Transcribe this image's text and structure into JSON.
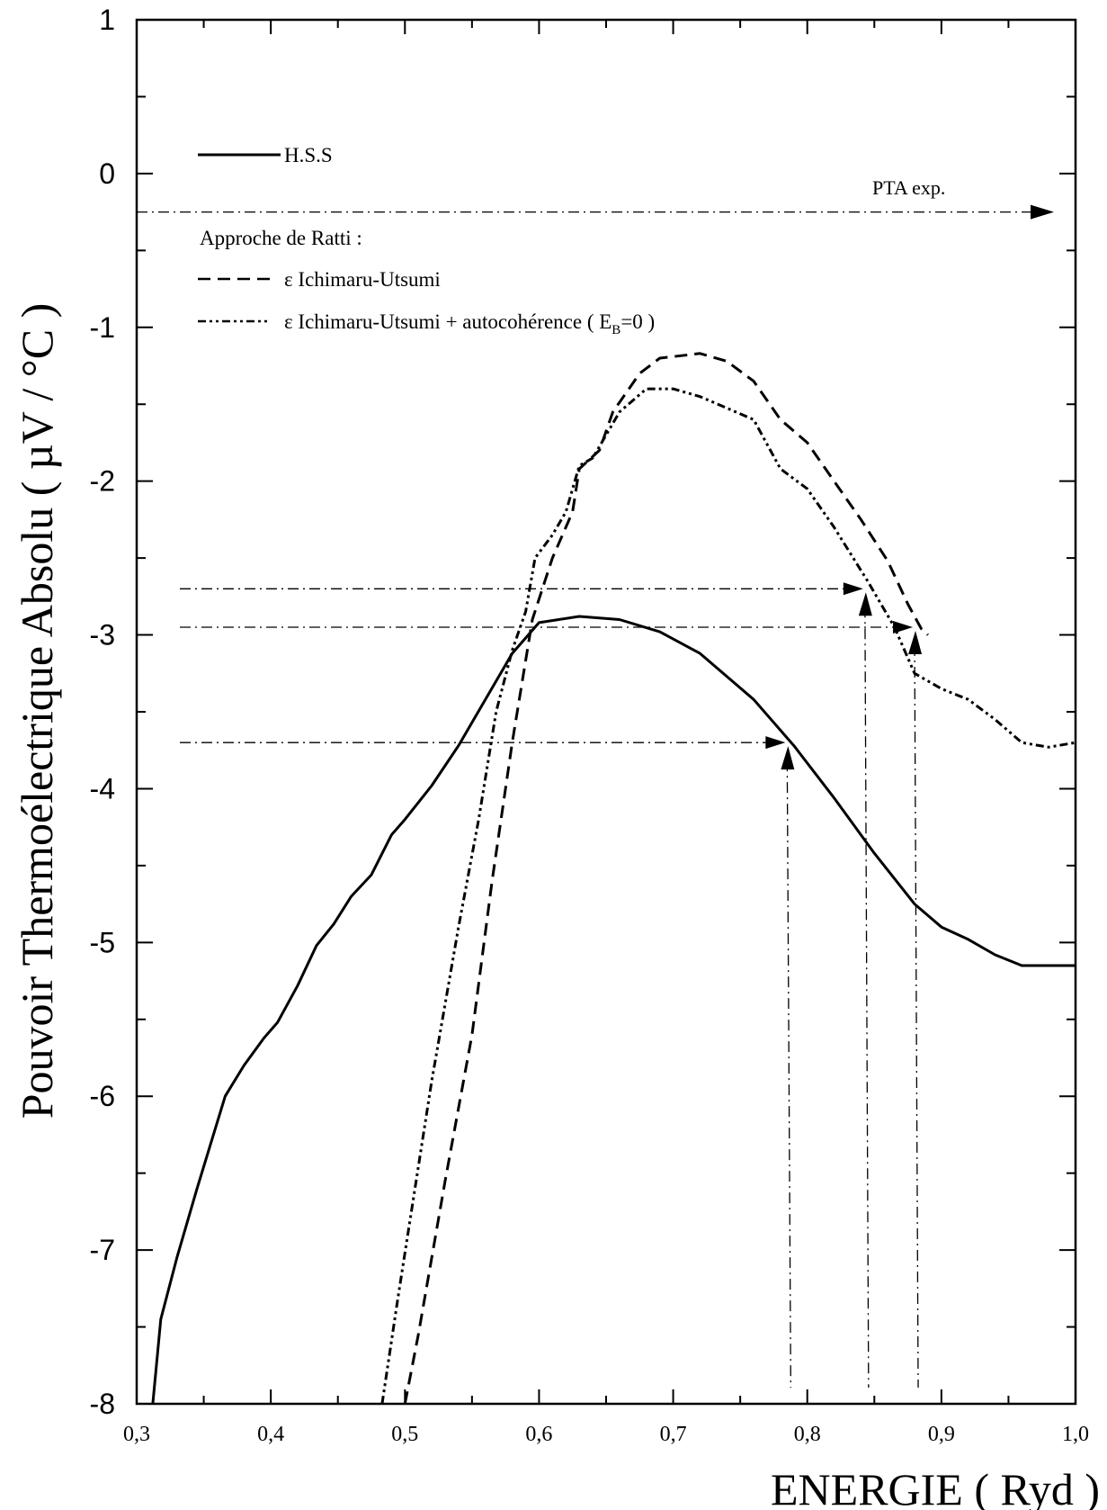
{
  "chart_data": {
    "type": "line",
    "xlabel": "ENERGIE ( Ryd )",
    "ylabel": "Pouvoir Thermoélectrique Absolu ( µV / °C )",
    "xlim": [
      0.3,
      1.0
    ],
    "ylim": [
      -8,
      1
    ],
    "x_ticks": [
      0.3,
      0.4,
      0.5,
      0.6,
      0.7,
      0.8,
      0.9,
      1.0
    ],
    "x_tick_labels": [
      "0,3",
      "0,4",
      "0,5",
      "0,6",
      "0,7",
      "0,8",
      "0,9",
      "1,0"
    ],
    "y_ticks": [
      1,
      0,
      -1,
      -2,
      -3,
      -4,
      -5,
      -6,
      -7,
      -8
    ],
    "y_tick_labels": [
      "1",
      "0",
      "-1",
      "-2",
      "-3",
      "-4",
      "-5",
      "-6",
      "-7",
      "-8"
    ],
    "grid": false,
    "legend_position": "top-left",
    "legend": {
      "hss_label": "H.S.S",
      "group_title": "Approche de Ratti :",
      "iu_label": "ε Ichimaru-Utsumi",
      "iu_auto_label_prefix": "ε Ichimaru-Utsumi + autocohérence ( E",
      "iu_auto_label_subscript": "B",
      "iu_auto_label_suffix": "=0 )"
    },
    "annotation": {
      "pta_label": "PTA exp.",
      "pta_value": -0.25
    },
    "series": [
      {
        "name": "H.S.S",
        "style": "solid",
        "points": [
          [
            0.312,
            -8.0
          ],
          [
            0.318,
            -7.45
          ],
          [
            0.33,
            -7.05
          ],
          [
            0.345,
            -6.6
          ],
          [
            0.366,
            -6.0
          ],
          [
            0.38,
            -5.8
          ],
          [
            0.395,
            -5.62
          ],
          [
            0.405,
            -5.52
          ],
          [
            0.42,
            -5.28
          ],
          [
            0.434,
            -5.02
          ],
          [
            0.447,
            -4.88
          ],
          [
            0.46,
            -4.7
          ],
          [
            0.475,
            -4.56
          ],
          [
            0.49,
            -4.3
          ],
          [
            0.5,
            -4.2
          ],
          [
            0.52,
            -3.98
          ],
          [
            0.54,
            -3.72
          ],
          [
            0.56,
            -3.42
          ],
          [
            0.58,
            -3.12
          ],
          [
            0.6,
            -2.92
          ],
          [
            0.63,
            -2.88
          ],
          [
            0.66,
            -2.9
          ],
          [
            0.69,
            -2.98
          ],
          [
            0.72,
            -3.12
          ],
          [
            0.76,
            -3.42
          ],
          [
            0.79,
            -3.72
          ],
          [
            0.82,
            -4.06
          ],
          [
            0.85,
            -4.42
          ],
          [
            0.88,
            -4.75
          ],
          [
            0.9,
            -4.9
          ],
          [
            0.92,
            -4.98
          ],
          [
            0.94,
            -5.08
          ],
          [
            0.96,
            -5.15
          ],
          [
            0.98,
            -5.15
          ],
          [
            1.0,
            -5.15
          ]
        ]
      },
      {
        "name": "ε Ichimaru-Utsumi",
        "style": "dashed",
        "points": [
          [
            0.5,
            -8.0
          ],
          [
            0.51,
            -7.55
          ],
          [
            0.53,
            -6.55
          ],
          [
            0.55,
            -5.6
          ],
          [
            0.565,
            -4.6
          ],
          [
            0.58,
            -3.7
          ],
          [
            0.595,
            -2.9
          ],
          [
            0.61,
            -2.5
          ],
          [
            0.625,
            -2.2
          ],
          [
            0.63,
            -1.92
          ],
          [
            0.645,
            -1.8
          ],
          [
            0.655,
            -1.55
          ],
          [
            0.675,
            -1.3
          ],
          [
            0.69,
            -1.2
          ],
          [
            0.72,
            -1.17
          ],
          [
            0.74,
            -1.22
          ],
          [
            0.76,
            -1.35
          ],
          [
            0.78,
            -1.6
          ],
          [
            0.8,
            -1.75
          ],
          [
            0.82,
            -2.0
          ],
          [
            0.84,
            -2.25
          ],
          [
            0.86,
            -2.52
          ],
          [
            0.875,
            -2.8
          ],
          [
            0.885,
            -2.96
          ],
          [
            0.89,
            -3.0
          ]
        ]
      },
      {
        "name": "ε Ichimaru-Utsumi + autocohérence ( EB=0 )",
        "style": "dash-dot-dot",
        "points": [
          [
            0.483,
            -8.0
          ],
          [
            0.495,
            -7.3
          ],
          [
            0.52,
            -5.9
          ],
          [
            0.54,
            -4.9
          ],
          [
            0.555,
            -4.2
          ],
          [
            0.568,
            -3.5
          ],
          [
            0.58,
            -3.1
          ],
          [
            0.59,
            -2.85
          ],
          [
            0.597,
            -2.5
          ],
          [
            0.61,
            -2.35
          ],
          [
            0.62,
            -2.2
          ],
          [
            0.63,
            -1.9
          ],
          [
            0.64,
            -1.85
          ],
          [
            0.66,
            -1.55
          ],
          [
            0.68,
            -1.4
          ],
          [
            0.7,
            -1.4
          ],
          [
            0.72,
            -1.45
          ],
          [
            0.76,
            -1.6
          ],
          [
            0.78,
            -1.92
          ],
          [
            0.8,
            -2.05
          ],
          [
            0.82,
            -2.3
          ],
          [
            0.845,
            -2.65
          ],
          [
            0.865,
            -2.95
          ],
          [
            0.88,
            -3.25
          ],
          [
            0.9,
            -3.35
          ],
          [
            0.92,
            -3.42
          ],
          [
            0.94,
            -3.55
          ],
          [
            0.96,
            -3.7
          ],
          [
            0.98,
            -3.73
          ],
          [
            1.0,
            -3.7
          ]
        ]
      }
    ],
    "guide_lines": [
      {
        "y": -2.7,
        "x_end": 0.843
      },
      {
        "y": -2.95,
        "x_end": 0.88
      },
      {
        "y": -3.7,
        "x_end": 0.785
      }
    ]
  }
}
